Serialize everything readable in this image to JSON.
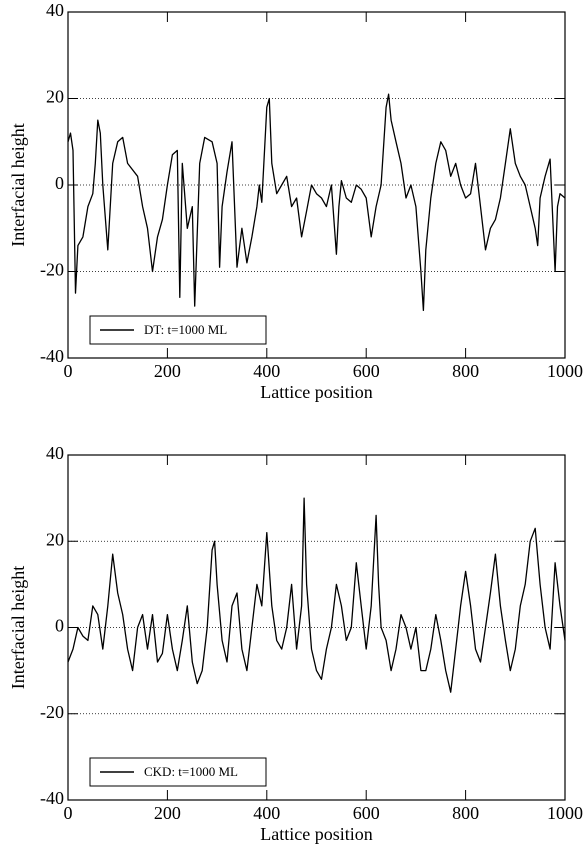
{
  "chart_data": [
    {
      "type": "line",
      "xlabel": "Lattice position",
      "ylabel": "Interfacial height",
      "xlim": [
        0,
        1000
      ],
      "ylim": [
        -40,
        40
      ],
      "xticks": [
        0,
        200,
        400,
        600,
        800,
        1000
      ],
      "yticks": [
        -40,
        -20,
        0,
        20,
        40
      ],
      "grid": true,
      "legend": "lower left",
      "x": [
        0,
        5,
        10,
        15,
        20,
        30,
        40,
        50,
        55,
        60,
        65,
        70,
        80,
        90,
        100,
        110,
        120,
        140,
        150,
        160,
        170,
        180,
        190,
        200,
        210,
        220,
        225,
        230,
        240,
        250,
        255,
        265,
        275,
        290,
        300,
        305,
        310,
        320,
        330,
        340,
        350,
        360,
        370,
        380,
        385,
        390,
        400,
        405,
        410,
        420,
        430,
        440,
        450,
        460,
        470,
        480,
        490,
        500,
        510,
        520,
        530,
        540,
        545,
        550,
        560,
        570,
        580,
        590,
        600,
        610,
        620,
        630,
        640,
        645,
        650,
        660,
        670,
        680,
        690,
        700,
        710,
        715,
        720,
        730,
        740,
        750,
        760,
        770,
        780,
        790,
        800,
        810,
        820,
        830,
        840,
        850,
        860,
        870,
        880,
        890,
        900,
        910,
        920,
        930,
        940,
        945,
        950,
        960,
        970,
        980,
        985,
        990,
        1000
      ],
      "series": [
        {
          "name": "DT: t=1000 ML",
          "color": "#000000",
          "values": [
            10,
            12,
            8,
            -25,
            -14,
            -12,
            -5,
            -2,
            5,
            15,
            12,
            0,
            -15,
            5,
            10,
            11,
            5,
            2,
            -5,
            -10,
            -20,
            -12,
            -8,
            0,
            7,
            8,
            -26,
            5,
            -10,
            -5,
            -28,
            5,
            11,
            10,
            5,
            -19,
            -5,
            3,
            10,
            -19,
            -10,
            -18,
            -12,
            -5,
            0,
            -4,
            18,
            20,
            5,
            -2,
            0,
            2,
            -5,
            -3,
            -12,
            -6,
            0,
            -2,
            -3,
            -5,
            0,
            -16,
            -5,
            1,
            -3,
            -4,
            0,
            -1,
            -3,
            -12,
            -5,
            0,
            18,
            21,
            15,
            10,
            5,
            -3,
            0,
            -5,
            -20,
            -29,
            -15,
            -3,
            5,
            10,
            8,
            2,
            5,
            0,
            -3,
            -2,
            5,
            -5,
            -15,
            -10,
            -8,
            -3,
            5,
            13,
            5,
            2,
            0,
            -5,
            -10,
            -14,
            -3,
            2,
            6,
            -20,
            -5,
            -2,
            -3
          ]
        }
      ]
    },
    {
      "type": "line",
      "xlabel": "Lattice position",
      "ylabel": "Interfacial height",
      "xlim": [
        0,
        1000
      ],
      "ylim": [
        -40,
        40
      ],
      "xticks": [
        0,
        200,
        400,
        600,
        800,
        1000
      ],
      "yticks": [
        -40,
        -20,
        0,
        20,
        40
      ],
      "grid": true,
      "legend": "lower left",
      "x": [
        0,
        10,
        20,
        30,
        40,
        50,
        60,
        70,
        80,
        90,
        100,
        110,
        120,
        130,
        140,
        150,
        160,
        170,
        180,
        190,
        200,
        210,
        220,
        230,
        240,
        250,
        260,
        270,
        280,
        290,
        295,
        300,
        310,
        320,
        330,
        340,
        350,
        360,
        370,
        380,
        390,
        400,
        410,
        420,
        430,
        440,
        450,
        460,
        470,
        475,
        480,
        490,
        500,
        510,
        520,
        530,
        540,
        550,
        560,
        570,
        580,
        590,
        600,
        610,
        620,
        625,
        630,
        640,
        650,
        660,
        670,
        680,
        690,
        700,
        710,
        720,
        730,
        740,
        750,
        760,
        770,
        780,
        790,
        800,
        810,
        820,
        830,
        840,
        850,
        860,
        870,
        880,
        890,
        900,
        910,
        920,
        930,
        940,
        950,
        960,
        970,
        980,
        990,
        1000
      ],
      "series": [
        {
          "name": "CKD: t=1000 ML",
          "color": "#000000",
          "values": [
            -8,
            -5,
            0,
            -2,
            -3,
            5,
            3,
            -5,
            5,
            17,
            8,
            3,
            -5,
            -10,
            0,
            3,
            -5,
            3,
            -8,
            -6,
            3,
            -5,
            -10,
            -3,
            5,
            -8,
            -13,
            -10,
            0,
            18,
            20,
            10,
            -3,
            -8,
            5,
            8,
            -5,
            -10,
            0,
            10,
            5,
            22,
            5,
            -3,
            -5,
            0,
            10,
            -5,
            5,
            30,
            10,
            -5,
            -10,
            -12,
            -5,
            0,
            10,
            5,
            -3,
            0,
            15,
            5,
            -5,
            5,
            26,
            10,
            0,
            -3,
            -10,
            -5,
            3,
            0,
            -5,
            0,
            -10,
            -10,
            -5,
            3,
            -3,
            -10,
            -15,
            -5,
            5,
            13,
            5,
            -5,
            -8,
            0,
            8,
            17,
            5,
            -3,
            -10,
            -5,
            5,
            10,
            20,
            23,
            10,
            0,
            -5,
            15,
            5,
            -3
          ]
        }
      ]
    }
  ]
}
